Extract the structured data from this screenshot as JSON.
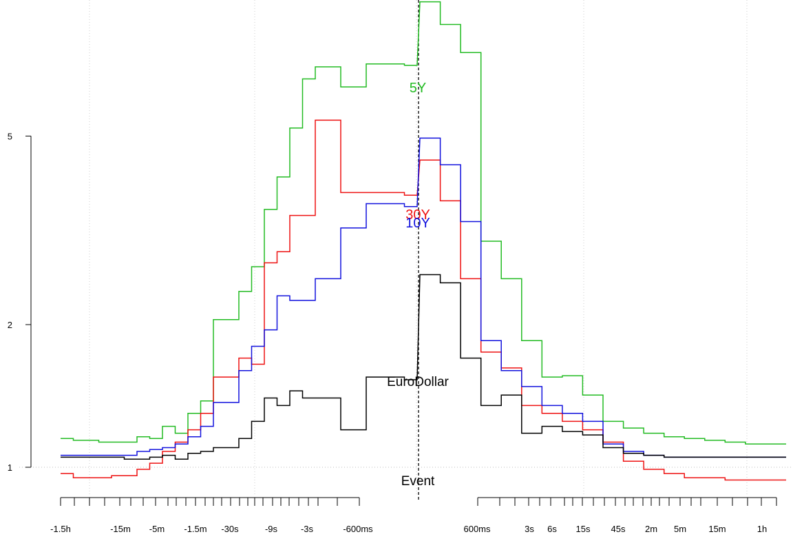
{
  "chart_data": {
    "type": "line",
    "y_scale": "log",
    "ylim": [
      0.96,
      10
    ],
    "y_ticks": [
      1,
      2,
      5
    ],
    "y_tick_labels": [
      "1",
      "2",
      "5"
    ],
    "x_tick_labels_left": [
      "-1.5h",
      "-15m",
      "-5m",
      "-1.5m",
      "-30s",
      "-9s",
      "-3s",
      "-600ms"
    ],
    "x_tick_labels_right": [
      "600ms",
      "3s",
      "6s",
      "15s",
      "45s",
      "2m",
      "5m",
      "15m",
      "1h"
    ],
    "event_label": "Event",
    "reference_line_y": 1,
    "colors": {
      "5Y": "#22bb22",
      "30Y": "#ee1111",
      "10Y": "#1111dd",
      "EuroDollar": "#000000"
    },
    "series": [
      {
        "name": "5Y",
        "color": "#22bb22",
        "pre": [
          [
            0,
            1.15
          ],
          [
            1,
            1.14
          ],
          [
            2,
            1.14
          ],
          [
            3,
            1.13
          ],
          [
            4,
            1.13
          ],
          [
            5,
            1.13
          ],
          [
            6,
            1.16
          ],
          [
            7,
            1.15
          ],
          [
            8,
            1.22
          ],
          [
            9,
            1.18
          ],
          [
            10,
            1.3
          ],
          [
            11,
            1.38
          ],
          [
            12,
            2.05
          ],
          [
            13,
            2.05
          ],
          [
            14,
            2.35
          ],
          [
            15,
            2.65
          ],
          [
            16,
            3.5
          ],
          [
            17,
            4.1
          ],
          [
            18,
            5.2
          ],
          [
            19,
            6.6
          ],
          [
            20,
            7.0
          ],
          [
            21,
            7.0
          ],
          [
            22,
            6.35
          ],
          [
            23,
            6.35
          ],
          [
            24,
            7.1
          ],
          [
            25,
            7.1
          ],
          [
            26,
            7.1
          ],
          [
            27,
            7.05
          ]
        ],
        "post": [
          [
            0,
            9.6
          ],
          [
            1,
            8.6
          ],
          [
            2,
            7.5
          ],
          [
            3,
            3.0
          ],
          [
            4,
            2.5
          ],
          [
            5,
            1.85
          ],
          [
            6,
            1.55
          ],
          [
            7,
            1.56
          ],
          [
            8,
            1.42
          ],
          [
            9,
            1.25
          ],
          [
            10,
            1.21
          ],
          [
            11,
            1.18
          ],
          [
            12,
            1.16
          ],
          [
            13,
            1.15
          ],
          [
            14,
            1.14
          ],
          [
            15,
            1.13
          ],
          [
            16,
            1.12
          ],
          [
            17,
            1.12
          ]
        ]
      },
      {
        "name": "30Y",
        "color": "#ee1111",
        "pre": [
          [
            0,
            0.97
          ],
          [
            1,
            0.95
          ],
          [
            2,
            0.95
          ],
          [
            3,
            0.95
          ],
          [
            4,
            0.96
          ],
          [
            5,
            0.96
          ],
          [
            6,
            0.99
          ],
          [
            7,
            1.02
          ],
          [
            8,
            1.08
          ],
          [
            9,
            1.13
          ],
          [
            10,
            1.2
          ],
          [
            11,
            1.3
          ],
          [
            12,
            1.55
          ],
          [
            13,
            1.55
          ],
          [
            14,
            1.7
          ],
          [
            15,
            1.65
          ],
          [
            16,
            2.7
          ],
          [
            17,
            2.85
          ],
          [
            18,
            3.4
          ],
          [
            19,
            3.4
          ],
          [
            20,
            5.4
          ],
          [
            21,
            5.4
          ],
          [
            22,
            3.8
          ],
          [
            23,
            3.8
          ],
          [
            24,
            3.8
          ],
          [
            25,
            3.8
          ],
          [
            26,
            3.8
          ],
          [
            27,
            3.75
          ]
        ],
        "post": [
          [
            0,
            4.45
          ],
          [
            1,
            3.65
          ],
          [
            2,
            2.5
          ],
          [
            3,
            1.75
          ],
          [
            4,
            1.62
          ],
          [
            5,
            1.35
          ],
          [
            6,
            1.3
          ],
          [
            7,
            1.25
          ],
          [
            8,
            1.2
          ],
          [
            9,
            1.13
          ],
          [
            10,
            1.03
          ],
          [
            11,
            0.99
          ],
          [
            12,
            0.97
          ],
          [
            13,
            0.95
          ],
          [
            14,
            0.95
          ],
          [
            15,
            0.94
          ],
          [
            16,
            0.94
          ],
          [
            17,
            0.94
          ]
        ]
      },
      {
        "name": "10Y",
        "color": "#1111dd",
        "pre": [
          [
            0,
            1.06
          ],
          [
            1,
            1.06
          ],
          [
            2,
            1.06
          ],
          [
            3,
            1.06
          ],
          [
            4,
            1.06
          ],
          [
            5,
            1.06
          ],
          [
            6,
            1.08
          ],
          [
            7,
            1.09
          ],
          [
            8,
            1.1
          ],
          [
            9,
            1.12
          ],
          [
            10,
            1.16
          ],
          [
            11,
            1.22
          ],
          [
            12,
            1.37
          ],
          [
            13,
            1.37
          ],
          [
            14,
            1.6
          ],
          [
            15,
            1.8
          ],
          [
            16,
            1.95
          ],
          [
            17,
            2.3
          ],
          [
            18,
            2.25
          ],
          [
            19,
            2.25
          ],
          [
            20,
            2.5
          ],
          [
            21,
            2.5
          ],
          [
            22,
            3.2
          ],
          [
            23,
            3.2
          ],
          [
            24,
            3.6
          ],
          [
            25,
            3.6
          ],
          [
            26,
            3.6
          ],
          [
            27,
            3.55
          ]
        ],
        "post": [
          [
            0,
            4.95
          ],
          [
            1,
            4.35
          ],
          [
            2,
            3.3
          ],
          [
            3,
            1.85
          ],
          [
            4,
            1.6
          ],
          [
            5,
            1.48
          ],
          [
            6,
            1.35
          ],
          [
            7,
            1.3
          ],
          [
            8,
            1.25
          ],
          [
            9,
            1.12
          ],
          [
            10,
            1.08
          ],
          [
            11,
            1.06
          ],
          [
            12,
            1.05
          ],
          [
            13,
            1.05
          ],
          [
            14,
            1.05
          ],
          [
            15,
            1.05
          ],
          [
            16,
            1.05
          ],
          [
            17,
            1.05
          ]
        ]
      },
      {
        "name": "EuroDollar",
        "color": "#000000",
        "pre": [
          [
            0,
            1.05
          ],
          [
            1,
            1.05
          ],
          [
            2,
            1.05
          ],
          [
            3,
            1.05
          ],
          [
            4,
            1.05
          ],
          [
            5,
            1.04
          ],
          [
            6,
            1.04
          ],
          [
            7,
            1.05
          ],
          [
            8,
            1.06
          ],
          [
            9,
            1.04
          ],
          [
            10,
            1.07
          ],
          [
            11,
            1.08
          ],
          [
            12,
            1.1
          ],
          [
            13,
            1.1
          ],
          [
            14,
            1.15
          ],
          [
            15,
            1.25
          ],
          [
            16,
            1.4
          ],
          [
            17,
            1.35
          ],
          [
            18,
            1.45
          ],
          [
            19,
            1.4
          ],
          [
            20,
            1.4
          ],
          [
            21,
            1.4
          ],
          [
            22,
            1.2
          ],
          [
            23,
            1.2
          ],
          [
            24,
            1.55
          ],
          [
            25,
            1.55
          ],
          [
            26,
            1.55
          ],
          [
            27,
            1.53
          ]
        ],
        "post": [
          [
            0,
            2.55
          ],
          [
            1,
            2.45
          ],
          [
            2,
            1.7
          ],
          [
            3,
            1.35
          ],
          [
            4,
            1.42
          ],
          [
            5,
            1.18
          ],
          [
            6,
            1.22
          ],
          [
            7,
            1.19
          ],
          [
            8,
            1.17
          ],
          [
            9,
            1.1
          ],
          [
            10,
            1.07
          ],
          [
            11,
            1.06
          ],
          [
            12,
            1.05
          ],
          [
            13,
            1.05
          ],
          [
            14,
            1.05
          ],
          [
            15,
            1.05
          ],
          [
            16,
            1.05
          ],
          [
            17,
            1.05
          ]
        ]
      }
    ]
  }
}
